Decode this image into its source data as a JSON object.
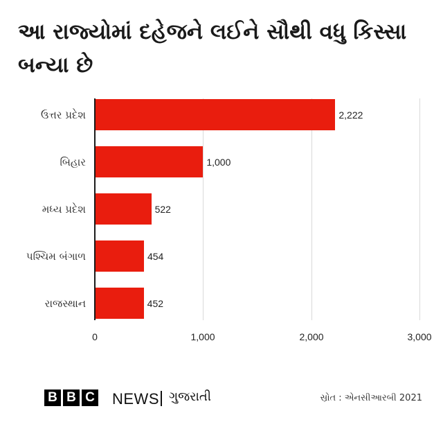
{
  "title": "આ રાજ્યોમાં દહેજને લઈને સૌથી વધુ કિસ્સા બન્યા છે",
  "chart_data": {
    "type": "bar",
    "orientation": "horizontal",
    "title": "આ રાજ્યોમાં દહેજને લઈને સૌથી વધુ કિસ્સા બન્યા છે",
    "categories": [
      "ઉત્તર પ્રદેશ",
      "બિહાર",
      "મધ્ય પ્રદેશ",
      "પશ્ચિમ બંગાળ",
      "રાજસ્થાન"
    ],
    "values": [
      2222,
      1000,
      522,
      454,
      452
    ],
    "value_labels": [
      "2,222",
      "1,000",
      "522",
      "454",
      "452"
    ],
    "xlabel": "",
    "ylabel": "",
    "xlim": [
      0,
      3000
    ],
    "xticks": [
      0,
      1000,
      2000,
      3000
    ],
    "xtick_labels": [
      "0",
      "1,000",
      "2,000",
      "3,000"
    ],
    "grid": true,
    "legend": null,
    "bar_color": "#e91d0e"
  },
  "footer": {
    "brand_letters": [
      "B",
      "B",
      "C"
    ],
    "brand_news": "NEWS",
    "brand_language": "ગુજરાતી",
    "source": "સ્રોત : એનસીઆરબી 2021"
  }
}
